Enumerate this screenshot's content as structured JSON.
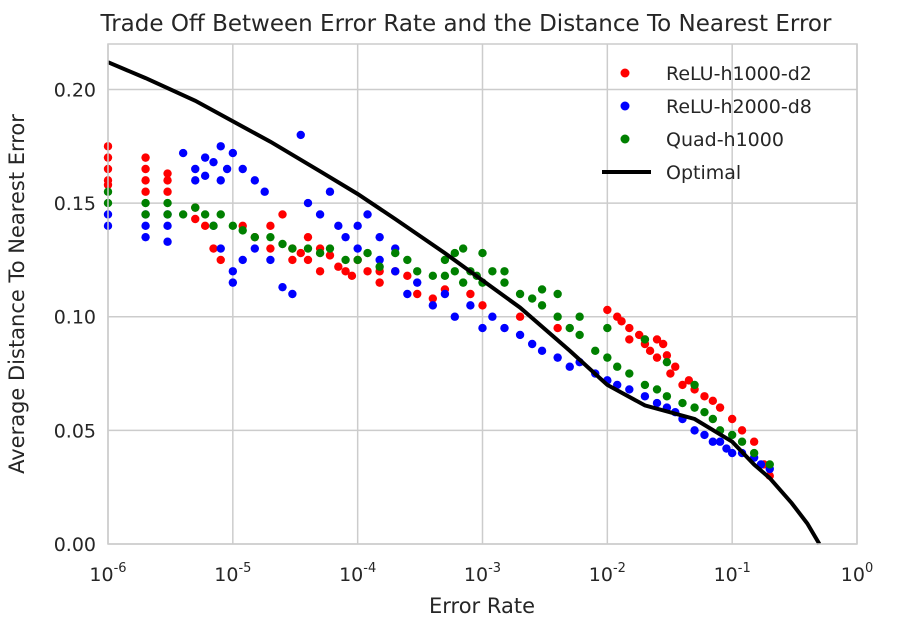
{
  "chart_data": {
    "type": "scatter",
    "title": "Trade Off Between Error Rate and the Distance To Nearest Error",
    "xlabel": "Error Rate",
    "ylabel": "Average Distance To Nearest Error",
    "xscale": "log",
    "xlim": [
      1e-06,
      1
    ],
    "ylim": [
      0,
      0.22
    ],
    "x_ticks": [
      {
        "value": 1e-06,
        "base": "10",
        "exp": "-6"
      },
      {
        "value": 1e-05,
        "base": "10",
        "exp": "-5"
      },
      {
        "value": 0.0001,
        "base": "10",
        "exp": "-4"
      },
      {
        "value": 0.001,
        "base": "10",
        "exp": "-3"
      },
      {
        "value": 0.01,
        "base": "10",
        "exp": "-2"
      },
      {
        "value": 0.1,
        "base": "10",
        "exp": "-1"
      },
      {
        "value": 1,
        "base": "10",
        "exp": "0"
      }
    ],
    "y_ticks": [
      {
        "value": 0,
        "label": "0.00"
      },
      {
        "value": 0.05,
        "label": "0.05"
      },
      {
        "value": 0.1,
        "label": "0.10"
      },
      {
        "value": 0.15,
        "label": "0.15"
      },
      {
        "value": 0.2,
        "label": "0.20"
      }
    ],
    "grid": true,
    "legend_position": "top-right",
    "series": [
      {
        "name": "ReLU-h1000-d2",
        "color": "#ff0000",
        "points": [
          [
            1e-06,
            0.175
          ],
          [
            1e-06,
            0.17
          ],
          [
            1e-06,
            0.165
          ],
          [
            1e-06,
            0.16
          ],
          [
            1e-06,
            0.158
          ],
          [
            2e-06,
            0.17
          ],
          [
            2e-06,
            0.165
          ],
          [
            2e-06,
            0.16
          ],
          [
            2e-06,
            0.155
          ],
          [
            3e-06,
            0.163
          ],
          [
            3e-06,
            0.16
          ],
          [
            3e-06,
            0.155
          ],
          [
            5e-06,
            0.148
          ],
          [
            5e-06,
            0.143
          ],
          [
            6e-06,
            0.14
          ],
          [
            7e-06,
            0.13
          ],
          [
            8e-06,
            0.125
          ],
          [
            1.2e-05,
            0.14
          ],
          [
            1.5e-05,
            0.135
          ],
          [
            2e-05,
            0.14
          ],
          [
            2e-05,
            0.13
          ],
          [
            2.5e-05,
            0.145
          ],
          [
            3e-05,
            0.13
          ],
          [
            3e-05,
            0.125
          ],
          [
            3.5e-05,
            0.128
          ],
          [
            4e-05,
            0.135
          ],
          [
            4e-05,
            0.125
          ],
          [
            5e-05,
            0.13
          ],
          [
            5e-05,
            0.12
          ],
          [
            6e-05,
            0.127
          ],
          [
            7e-05,
            0.122
          ],
          [
            8e-05,
            0.12
          ],
          [
            9e-05,
            0.118
          ],
          [
            0.0001,
            0.125
          ],
          [
            0.00012,
            0.12
          ],
          [
            0.00015,
            0.115
          ],
          [
            0.00015,
            0.12
          ],
          [
            0.0002,
            0.12
          ],
          [
            0.00025,
            0.118
          ],
          [
            0.0003,
            0.11
          ],
          [
            0.0004,
            0.108
          ],
          [
            0.0005,
            0.112
          ],
          [
            0.0008,
            0.11
          ],
          [
            0.001,
            0.105
          ],
          [
            0.002,
            0.1
          ],
          [
            0.004,
            0.095
          ],
          [
            0.01,
            0.103
          ],
          [
            0.012,
            0.1
          ],
          [
            0.013,
            0.098
          ],
          [
            0.015,
            0.095
          ],
          [
            0.015,
            0.09
          ],
          [
            0.018,
            0.092
          ],
          [
            0.02,
            0.09
          ],
          [
            0.02,
            0.088
          ],
          [
            0.022,
            0.085
          ],
          [
            0.025,
            0.09
          ],
          [
            0.025,
            0.082
          ],
          [
            0.028,
            0.088
          ],
          [
            0.03,
            0.083
          ],
          [
            0.032,
            0.075
          ],
          [
            0.035,
            0.078
          ],
          [
            0.04,
            0.07
          ],
          [
            0.045,
            0.072
          ],
          [
            0.05,
            0.068
          ],
          [
            0.06,
            0.065
          ],
          [
            0.07,
            0.063
          ],
          [
            0.08,
            0.06
          ],
          [
            0.1,
            0.055
          ],
          [
            0.12,
            0.05
          ],
          [
            0.15,
            0.045
          ],
          [
            0.18,
            0.035
          ],
          [
            0.2,
            0.03
          ]
        ]
      },
      {
        "name": "ReLU-h2000-d8",
        "color": "#0000ff",
        "points": [
          [
            1e-06,
            0.145
          ],
          [
            1e-06,
            0.14
          ],
          [
            2e-06,
            0.145
          ],
          [
            2e-06,
            0.14
          ],
          [
            2e-06,
            0.135
          ],
          [
            3e-06,
            0.145
          ],
          [
            3e-06,
            0.14
          ],
          [
            3e-06,
            0.133
          ],
          [
            4e-06,
            0.172
          ],
          [
            5e-06,
            0.165
          ],
          [
            5e-06,
            0.16
          ],
          [
            6e-06,
            0.17
          ],
          [
            6e-06,
            0.162
          ],
          [
            7e-06,
            0.168
          ],
          [
            8e-06,
            0.175
          ],
          [
            8e-06,
            0.16
          ],
          [
            9e-06,
            0.165
          ],
          [
            1e-05,
            0.172
          ],
          [
            1.2e-05,
            0.165
          ],
          [
            1.5e-05,
            0.16
          ],
          [
            1.8e-05,
            0.155
          ],
          [
            7e-06,
            0.14
          ],
          [
            8e-06,
            0.13
          ],
          [
            1e-05,
            0.12
          ],
          [
            1e-05,
            0.115
          ],
          [
            1.2e-05,
            0.125
          ],
          [
            1.5e-05,
            0.13
          ],
          [
            2e-05,
            0.125
          ],
          [
            2.5e-05,
            0.113
          ],
          [
            3e-05,
            0.11
          ],
          [
            3.5e-05,
            0.18
          ],
          [
            4e-05,
            0.15
          ],
          [
            5e-05,
            0.145
          ],
          [
            6e-05,
            0.155
          ],
          [
            7e-05,
            0.14
          ],
          [
            8e-05,
            0.135
          ],
          [
            0.0001,
            0.14
          ],
          [
            0.0001,
            0.13
          ],
          [
            0.00012,
            0.145
          ],
          [
            0.00015,
            0.125
          ],
          [
            0.00015,
            0.135
          ],
          [
            0.0002,
            0.13
          ],
          [
            0.0002,
            0.12
          ],
          [
            0.00025,
            0.11
          ],
          [
            0.0003,
            0.115
          ],
          [
            0.0004,
            0.105
          ],
          [
            0.0005,
            0.11
          ],
          [
            0.0006,
            0.1
          ],
          [
            0.0008,
            0.105
          ],
          [
            0.001,
            0.095
          ],
          [
            0.0012,
            0.1
          ],
          [
            0.0015,
            0.095
          ],
          [
            0.002,
            0.092
          ],
          [
            0.0025,
            0.088
          ],
          [
            0.003,
            0.085
          ],
          [
            0.004,
            0.082
          ],
          [
            0.005,
            0.078
          ],
          [
            0.006,
            0.08
          ],
          [
            0.008,
            0.075
          ],
          [
            0.01,
            0.072
          ],
          [
            0.012,
            0.07
          ],
          [
            0.015,
            0.068
          ],
          [
            0.02,
            0.065
          ],
          [
            0.025,
            0.062
          ],
          [
            0.03,
            0.06
          ],
          [
            0.035,
            0.058
          ],
          [
            0.04,
            0.055
          ],
          [
            0.05,
            0.05
          ],
          [
            0.06,
            0.048
          ],
          [
            0.07,
            0.045
          ],
          [
            0.08,
            0.045
          ],
          [
            0.09,
            0.042
          ],
          [
            0.1,
            0.04
          ],
          [
            0.12,
            0.04
          ],
          [
            0.15,
            0.038
          ],
          [
            0.17,
            0.035
          ],
          [
            0.2,
            0.033
          ]
        ]
      },
      {
        "name": "Quad-h1000",
        "color": "#008000",
        "points": [
          [
            1e-06,
            0.155
          ],
          [
            1e-06,
            0.15
          ],
          [
            2e-06,
            0.15
          ],
          [
            2e-06,
            0.145
          ],
          [
            3e-06,
            0.15
          ],
          [
            3e-06,
            0.145
          ],
          [
            4e-06,
            0.145
          ],
          [
            5e-06,
            0.148
          ],
          [
            6e-06,
            0.145
          ],
          [
            7e-06,
            0.14
          ],
          [
            8e-06,
            0.145
          ],
          [
            1e-05,
            0.14
          ],
          [
            1.2e-05,
            0.138
          ],
          [
            1.5e-05,
            0.135
          ],
          [
            2e-05,
            0.135
          ],
          [
            2.5e-05,
            0.132
          ],
          [
            3e-05,
            0.13
          ],
          [
            4e-05,
            0.13
          ],
          [
            5e-05,
            0.128
          ],
          [
            6e-05,
            0.13
          ],
          [
            8e-05,
            0.125
          ],
          [
            0.0001,
            0.125
          ],
          [
            0.00012,
            0.128
          ],
          [
            0.00015,
            0.122
          ],
          [
            0.0002,
            0.128
          ],
          [
            0.00025,
            0.125
          ],
          [
            0.0003,
            0.12
          ],
          [
            0.0004,
            0.118
          ],
          [
            0.0005,
            0.125
          ],
          [
            0.0005,
            0.118
          ],
          [
            0.0006,
            0.12
          ],
          [
            0.0006,
            0.128
          ],
          [
            0.0007,
            0.115
          ],
          [
            0.0008,
            0.12
          ],
          [
            0.0009,
            0.118
          ],
          [
            0.001,
            0.115
          ],
          [
            0.0012,
            0.12
          ],
          [
            0.0015,
            0.115
          ],
          [
            0.002,
            0.11
          ],
          [
            0.0025,
            0.108
          ],
          [
            0.003,
            0.105
          ],
          [
            0.004,
            0.1
          ],
          [
            0.005,
            0.095
          ],
          [
            0.006,
            0.092
          ],
          [
            0.008,
            0.085
          ],
          [
            0.01,
            0.082
          ],
          [
            0.012,
            0.078
          ],
          [
            0.015,
            0.075
          ],
          [
            0.02,
            0.07
          ],
          [
            0.025,
            0.068
          ],
          [
            0.03,
            0.065
          ],
          [
            0.04,
            0.062
          ],
          [
            0.05,
            0.06
          ],
          [
            0.06,
            0.058
          ],
          [
            0.07,
            0.055
          ],
          [
            0.08,
            0.05
          ],
          [
            0.1,
            0.048
          ],
          [
            0.12,
            0.045
          ],
          [
            0.15,
            0.04
          ],
          [
            0.2,
            0.035
          ],
          [
            0.0007,
            0.13
          ],
          [
            0.001,
            0.128
          ],
          [
            0.0015,
            0.12
          ],
          [
            0.003,
            0.112
          ],
          [
            0.004,
            0.11
          ],
          [
            0.006,
            0.1
          ],
          [
            0.01,
            0.095
          ],
          [
            0.02,
            0.09
          ],
          [
            0.03,
            0.08
          ],
          [
            0.05,
            0.07
          ]
        ]
      }
    ],
    "optimal_curve": {
      "name": "Optimal",
      "color": "#000000",
      "points": [
        [
          1e-06,
          0.212
        ],
        [
          2e-06,
          0.205
        ],
        [
          5e-06,
          0.195
        ],
        [
          1e-05,
          0.186
        ],
        [
          2e-05,
          0.177
        ],
        [
          5e-05,
          0.164
        ],
        [
          0.0001,
          0.154
        ],
        [
          0.0002,
          0.143
        ],
        [
          0.0005,
          0.128
        ],
        [
          0.001,
          0.116
        ],
        [
          0.002,
          0.104
        ],
        [
          0.005,
          0.085
        ],
        [
          0.01,
          0.07
        ],
        [
          0.02,
          0.061
        ],
        [
          0.05,
          0.055
        ],
        [
          0.1,
          0.045
        ],
        [
          0.15,
          0.035
        ],
        [
          0.2,
          0.029
        ],
        [
          0.3,
          0.018
        ],
        [
          0.4,
          0.009
        ],
        [
          0.5,
          0
        ]
      ]
    }
  }
}
